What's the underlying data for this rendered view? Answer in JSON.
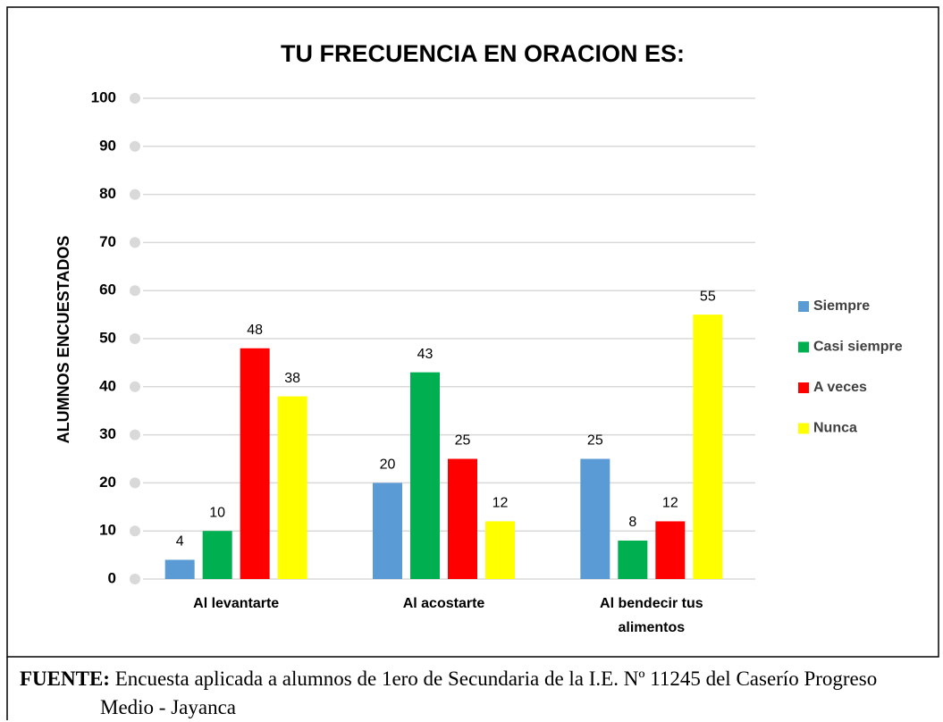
{
  "chart_data": {
    "type": "bar",
    "title": "TU FRECUENCIA EN ORACION ES:",
    "y_label": "ALUMNOS ENCUESTADOS",
    "categories": [
      "Al levantarte",
      "Al acostarte",
      "Al bendecir tus alimentos"
    ],
    "series": [
      {
        "name": "Siempre",
        "color": "#5b9bd5",
        "values": [
          4,
          20,
          25
        ]
      },
      {
        "name": "Casi siempre",
        "color": "#00b050",
        "values": [
          10,
          43,
          8
        ]
      },
      {
        "name": "A veces",
        "color": "#ff0000",
        "values": [
          48,
          25,
          12
        ]
      },
      {
        "name": "Nunca",
        "color": "#ffff00",
        "values": [
          38,
          12,
          55
        ]
      }
    ],
    "ylim": [
      0,
      100
    ],
    "yticks": [
      0,
      10,
      20,
      30,
      40,
      50,
      60,
      70,
      80,
      90,
      100
    ],
    "grid": true,
    "legend": "right"
  },
  "source": {
    "label": "FUENTE:",
    "text": "Encuesta aplicada a alumnos de 1ero de Secundaria de la I.E. Nº 11245 del Caserío Progreso Medio - Jayanca"
  }
}
